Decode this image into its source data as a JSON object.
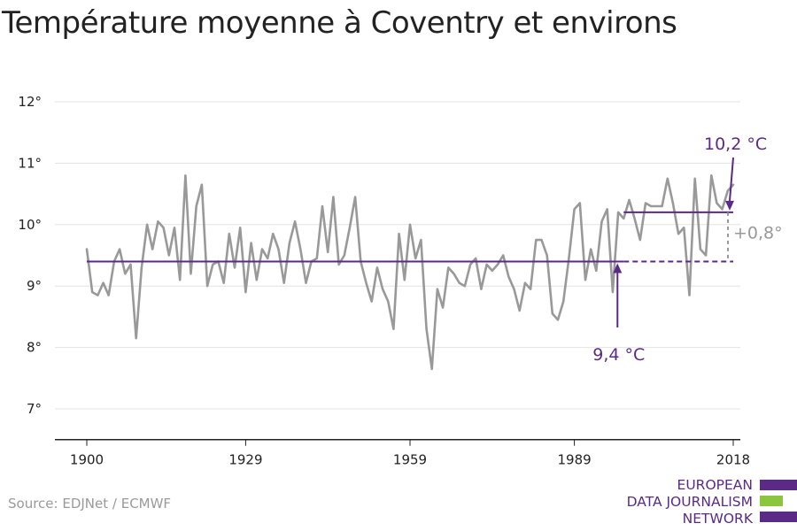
{
  "title": "Température moyenne à Coventry et environs",
  "source": "Source: EDJNet / ECMWF",
  "logo": {
    "lines": [
      "EUROPEAN",
      "DATA JOURNALISM",
      "NETWORK"
    ]
  },
  "colors": {
    "series": "#999999",
    "baseline": "#5b2a86",
    "recent": "#5b2a86",
    "logo_green": "#8cc63f",
    "logo_purple": "#5b2a86"
  },
  "chart_data": {
    "type": "line",
    "title": "Température moyenne à Coventry et environs",
    "xlabel": "",
    "ylabel": "",
    "xlim": [
      1900,
      2018
    ],
    "ylim": [
      6.5,
      12.3
    ],
    "x_ticks": [
      1900,
      1929,
      1959,
      1989,
      2018
    ],
    "y_ticks": [
      7,
      8,
      9,
      10,
      11,
      12
    ],
    "y_tick_suffix": "°",
    "grid": true,
    "series": [
      {
        "x": [
          1900,
          1901,
          1902,
          1903,
          1904,
          1905,
          1906,
          1907,
          1908,
          1909,
          1910,
          1911,
          1912,
          1913,
          1914,
          1915,
          1916,
          1917,
          1918,
          1919,
          1920,
          1921,
          1922,
          1923,
          1924,
          1925,
          1926,
          1927,
          1928,
          1929,
          1930,
          1931,
          1932,
          1933,
          1934,
          1935,
          1936,
          1937,
          1938,
          1939,
          1940,
          1941,
          1942,
          1943,
          1944,
          1945,
          1946,
          1947,
          1948,
          1949,
          1950,
          1951,
          1952,
          1953,
          1954,
          1955,
          1956,
          1957,
          1958,
          1959,
          1960,
          1961,
          1962,
          1963,
          1964,
          1965,
          1966,
          1967,
          1968,
          1969,
          1970,
          1971,
          1972,
          1973,
          1974,
          1975,
          1976,
          1977,
          1978,
          1979,
          1980,
          1981,
          1982,
          1983,
          1984,
          1985,
          1986,
          1987,
          1988,
          1989,
          1990,
          1991,
          1992,
          1993,
          1994,
          1995,
          1996,
          1997,
          1998,
          1999,
          2000,
          2001,
          2002,
          2003,
          2004,
          2005,
          2006,
          2007,
          2008,
          2009,
          2010,
          2011,
          2012,
          2013,
          2014,
          2015,
          2016,
          2017,
          2018
        ],
        "values": [
          9.6,
          8.9,
          8.85,
          9.05,
          8.85,
          9.4,
          9.6,
          9.2,
          9.35,
          8.15,
          9.3,
          10.0,
          9.6,
          10.05,
          9.95,
          9.5,
          9.95,
          9.1,
          10.8,
          9.2,
          10.3,
          10.65,
          9.0,
          9.35,
          9.4,
          9.05,
          9.85,
          9.3,
          9.95,
          8.9,
          9.7,
          9.1,
          9.6,
          9.45,
          9.85,
          9.6,
          9.05,
          9.7,
          10.05,
          9.6,
          9.05,
          9.4,
          9.45,
          10.3,
          9.55,
          10.45,
          9.35,
          9.5,
          9.95,
          10.45,
          9.4,
          9.05,
          8.75,
          9.3,
          8.95,
          8.75,
          8.3,
          9.85,
          9.1,
          10.0,
          9.45,
          9.75,
          8.3,
          7.65,
          8.95,
          8.65,
          9.3,
          9.2,
          9.05,
          9.0,
          9.35,
          9.45,
          8.95,
          9.35,
          9.25,
          9.35,
          9.5,
          9.15,
          8.95,
          8.6,
          9.05,
          8.95,
          9.75,
          9.75,
          9.5,
          8.55,
          8.45,
          8.75,
          9.45,
          10.25,
          10.35,
          9.1,
          9.6,
          9.25,
          10.05,
          10.25,
          8.9,
          10.2,
          10.1,
          10.4,
          10.1,
          9.75,
          10.35,
          10.3,
          10.3,
          10.3,
          10.75,
          10.35,
          9.85,
          9.95,
          8.85,
          10.75,
          9.6,
          9.5,
          10.8,
          10.35,
          10.25,
          10.55,
          10.65
        ]
      }
    ],
    "reference_lines": [
      {
        "value": 9.4,
        "label": "9,4 °C",
        "from": 1900,
        "to": 2018
      },
      {
        "value": 10.2,
        "label": "10,2 °C",
        "from": 1998,
        "to": 2018
      }
    ],
    "difference_label": "+0,8°"
  }
}
